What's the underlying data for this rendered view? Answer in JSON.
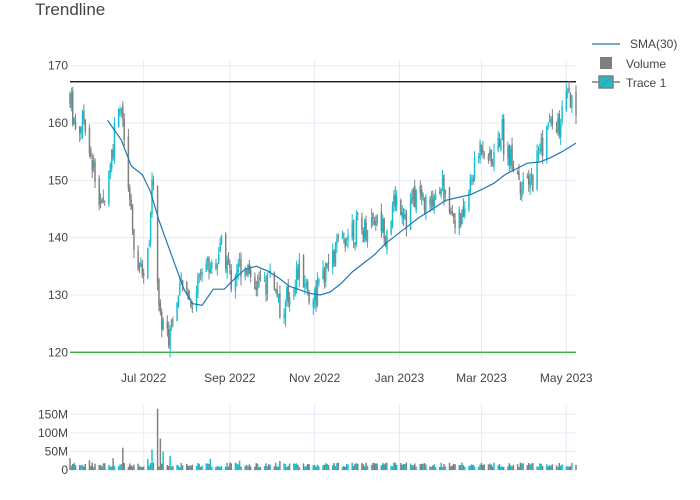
{
  "title": "Trendline",
  "colors": {
    "up": "#17becf",
    "down": "#7f7f7f",
    "sma": "#1f77b4",
    "resistance": "#000000",
    "support": "#2ca02c",
    "grid": "#e5ecf6"
  },
  "legend": {
    "position": "top-right",
    "items": [
      "SMA(30)",
      "Volume",
      "Trace 1"
    ]
  },
  "chart_data": [
    {
      "type": "candlestick",
      "title": "Trendline",
      "x_ticks": [
        "Jul 2022",
        "Sep 2022",
        "Nov 2022",
        "Jan 2023",
        "Mar 2023",
        "May 2023"
      ],
      "x_range": [
        "2022-05-09",
        "2023-05-08"
      ],
      "y_ticks": [
        120,
        130,
        140,
        150,
        160,
        170
      ],
      "ylim": [
        119,
        171
      ],
      "grid": true,
      "trendlines": [
        {
          "name": "resistance",
          "y": 167.2
        },
        {
          "name": "support",
          "y": 120.0
        }
      ],
      "series": [
        {
          "name": "Trace 1",
          "anchors": [
            [
              "2022-05-09",
              165
            ],
            [
              "2022-05-14",
              158
            ],
            [
              "2022-05-19",
              161
            ],
            [
              "2022-05-25",
              153
            ],
            [
              "2022-06-01",
              145
            ],
            [
              "2022-06-05",
              150
            ],
            [
              "2022-06-08",
              155
            ],
            [
              "2022-06-12",
              160
            ],
            [
              "2022-06-15",
              163
            ],
            [
              "2022-06-20",
              148
            ],
            [
              "2022-06-25",
              136
            ],
            [
              "2022-07-02",
              133
            ],
            [
              "2022-07-08",
              150
            ],
            [
              "2022-07-12",
              127
            ],
            [
              "2022-07-18",
              123
            ],
            [
              "2022-07-24",
              128
            ],
            [
              "2022-07-30",
              132
            ],
            [
              "2022-08-05",
              128
            ],
            [
              "2022-08-12",
              136
            ],
            [
              "2022-08-20",
              135
            ],
            [
              "2022-08-26",
              139
            ],
            [
              "2022-09-02",
              133
            ],
            [
              "2022-09-10",
              136
            ],
            [
              "2022-09-18",
              133
            ],
            [
              "2022-09-25",
              131
            ],
            [
              "2022-10-01",
              135
            ],
            [
              "2022-10-08",
              125
            ],
            [
              "2022-10-15",
              131
            ],
            [
              "2022-10-22",
              135
            ],
            [
              "2022-10-29",
              129
            ],
            [
              "2022-11-05",
              132
            ],
            [
              "2022-11-12",
              136
            ],
            [
              "2022-11-20",
              139
            ],
            [
              "2022-11-28",
              142
            ],
            [
              "2022-12-06",
              141
            ],
            [
              "2022-12-14",
              144
            ],
            [
              "2022-12-22",
              141
            ],
            [
              "2022-12-30",
              147
            ],
            [
              "2023-01-06",
              144
            ],
            [
              "2023-01-14",
              148
            ],
            [
              "2023-01-22",
              145
            ],
            [
              "2023-01-30",
              150
            ],
            [
              "2023-02-07",
              145
            ],
            [
              "2023-02-14",
              142
            ],
            [
              "2023-02-22",
              150
            ],
            [
              "2023-03-01",
              157
            ],
            [
              "2023-03-08",
              153
            ],
            [
              "2023-03-15",
              158
            ],
            [
              "2023-03-22",
              154
            ],
            [
              "2023-03-29",
              150
            ],
            [
              "2023-04-05",
              149
            ],
            [
              "2023-04-12",
              156
            ],
            [
              "2023-04-19",
              160
            ],
            [
              "2023-04-26",
              159
            ],
            [
              "2023-05-02",
              164
            ],
            [
              "2023-05-08",
              161
            ]
          ]
        },
        {
          "name": "SMA(30)",
          "type": "line",
          "points": [
            [
              "2022-06-05",
              160.5
            ],
            [
              "2022-06-15",
              157
            ],
            [
              "2022-06-22",
              152.5
            ],
            [
              "2022-06-30",
              151
            ],
            [
              "2022-07-06",
              148
            ],
            [
              "2022-07-12",
              143
            ],
            [
              "2022-07-18",
              139
            ],
            [
              "2022-07-24",
              135
            ],
            [
              "2022-07-30",
              131
            ],
            [
              "2022-08-05",
              128.5
            ],
            [
              "2022-08-12",
              128.2
            ],
            [
              "2022-08-20",
              131
            ],
            [
              "2022-08-28",
              131
            ],
            [
              "2022-09-05",
              133
            ],
            [
              "2022-09-12",
              134.5
            ],
            [
              "2022-09-20",
              135
            ],
            [
              "2022-09-28",
              134.2
            ],
            [
              "2022-10-06",
              133
            ],
            [
              "2022-10-14",
              131.5
            ],
            [
              "2022-10-20",
              131
            ],
            [
              "2022-10-28",
              130.3
            ],
            [
              "2022-11-05",
              130
            ],
            [
              "2022-11-12",
              130.5
            ],
            [
              "2022-11-20",
              132
            ],
            [
              "2022-11-28",
              134
            ],
            [
              "2022-12-06",
              135.5
            ],
            [
              "2022-12-14",
              137
            ],
            [
              "2022-12-22",
              139
            ],
            [
              "2022-12-30",
              140.5
            ],
            [
              "2023-01-07",
              142
            ],
            [
              "2023-01-15",
              143.5
            ],
            [
              "2023-01-25",
              145
            ],
            [
              "2023-02-03",
              146.5
            ],
            [
              "2023-02-12",
              147
            ],
            [
              "2023-02-21",
              147.5
            ],
            [
              "2023-03-02",
              148.5
            ],
            [
              "2023-03-10",
              149.5
            ],
            [
              "2023-03-18",
              151
            ],
            [
              "2023-03-26",
              152
            ],
            [
              "2023-04-03",
              153
            ],
            [
              "2023-04-12",
              153.2
            ],
            [
              "2023-04-20",
              154
            ],
            [
              "2023-04-28",
              155
            ],
            [
              "2023-05-08",
              156.5
            ]
          ]
        }
      ]
    },
    {
      "type": "bar",
      "name": "Volume",
      "y_ticks": [
        "0",
        "50M",
        "100M",
        "150M"
      ],
      "ylim": [
        0,
        175000000
      ],
      "grid": true,
      "typical_volume": 14000000,
      "spikes": [
        [
          "2022-05-09",
          32000000
        ],
        [
          "2022-05-23",
          26000000
        ],
        [
          "2022-06-09",
          32000000
        ],
        [
          "2022-06-16",
          60000000
        ],
        [
          "2022-07-04",
          30000000
        ],
        [
          "2022-07-07",
          55000000
        ],
        [
          "2022-07-11",
          165000000
        ],
        [
          "2022-07-13",
          85000000
        ],
        [
          "2022-07-15",
          50000000
        ],
        [
          "2022-07-20",
          38000000
        ],
        [
          "2022-08-18",
          30000000
        ],
        [
          "2022-09-08",
          25000000
        ],
        [
          "2022-10-07",
          24000000
        ]
      ]
    }
  ]
}
